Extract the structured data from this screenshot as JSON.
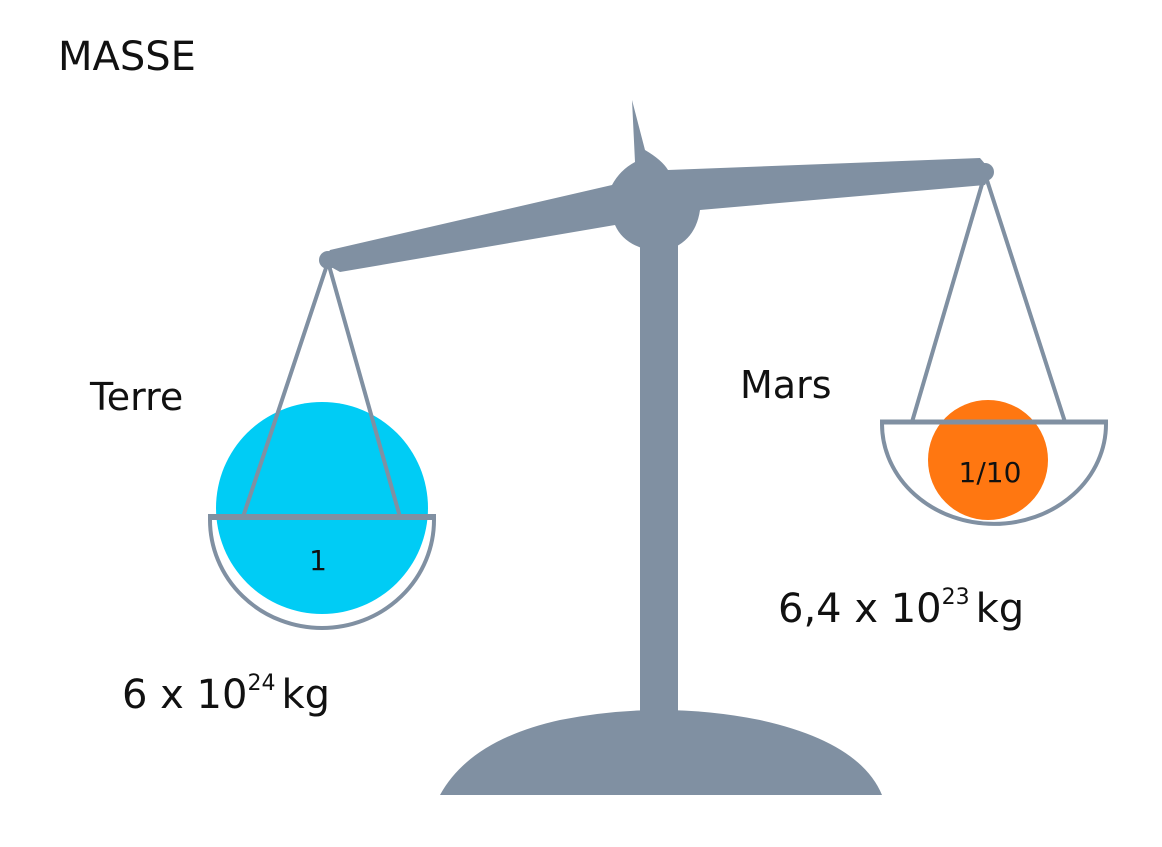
{
  "title": "MASSE",
  "planets": [
    {
      "name": "Terre",
      "ratio": "1",
      "mass": {
        "base": "6 x 10",
        "exponent": "24",
        "unit": "kg"
      }
    },
    {
      "name": "Mars",
      "ratio": "1/10",
      "mass": {
        "base": "6,4 x 10",
        "exponent": "23",
        "unit": "kg"
      }
    }
  ]
}
